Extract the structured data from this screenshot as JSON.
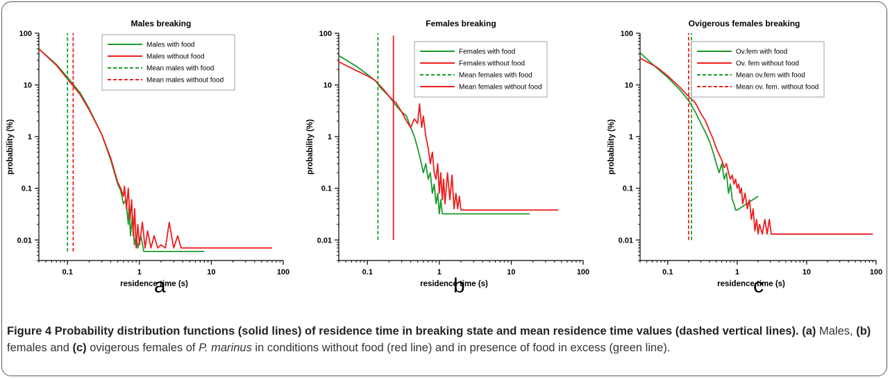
{
  "figure": {
    "letters": [
      "a",
      "b",
      "c"
    ],
    "caption": {
      "label": "Figure 4",
      "bold_text": "Probability distribution functions (solid lines) of residence time in breaking state and mean residence time values (dashed vertical lines).",
      "a_tag": "(a)",
      "a_text": "Males,",
      "b_tag": "(b)",
      "b_text": "females and",
      "c_tag": "(c)",
      "c_text": "ovigerous females of",
      "species": "P. marinus",
      "rest": "in conditions without food (red line) and in presence of food in excess (green line)."
    }
  },
  "colors": {
    "green": "#1a9a2a",
    "red": "#ee1c1c"
  },
  "chart_data": [
    {
      "type": "line",
      "title": "Males breaking",
      "xlabel": "residence time (s)",
      "ylabel": "probability (%)",
      "xscale": "log",
      "yscale": "log",
      "xlim": [
        0.04,
        100
      ],
      "ylim": [
        0.004,
        100
      ],
      "xticks": [
        {
          "v": 0.1,
          "label": "0.1"
        },
        {
          "v": 1,
          "label": "1"
        },
        {
          "v": 10,
          "label": "10"
        },
        {
          "v": 100,
          "label": "100"
        }
      ],
      "yticks": [
        {
          "v": 100,
          "label": "100"
        },
        {
          "v": 10,
          "label": "10"
        },
        {
          "v": 1,
          "label": "1"
        },
        {
          "v": 0.1,
          "label": "0.1"
        },
        {
          "v": 0.01,
          "label": "0.01"
        }
      ],
      "legend_position": "top-right",
      "series": [
        {
          "name": "Males with food",
          "color": "green",
          "dash": false,
          "points": [
            [
              0.04,
              50
            ],
            [
              0.07,
              25
            ],
            [
              0.1,
              14
            ],
            [
              0.15,
              7
            ],
            [
              0.2,
              3.5
            ],
            [
              0.3,
              1.1
            ],
            [
              0.4,
              0.35
            ],
            [
              0.5,
              0.12
            ],
            [
              0.55,
              0.09
            ],
            [
              0.6,
              0.05
            ],
            [
              0.65,
              0.06
            ],
            [
              0.7,
              0.02
            ],
            [
              0.72,
              0.05
            ],
            [
              0.75,
              0.012
            ],
            [
              0.8,
              0.03
            ],
            [
              0.85,
              0.008
            ],
            [
              0.9,
              0.012
            ],
            [
              0.95,
              0.007
            ],
            [
              1.05,
              0.012
            ],
            [
              1.15,
              0.006
            ],
            [
              1.3,
              0.006
            ],
            [
              8,
              0.006
            ]
          ]
        },
        {
          "name": "Males without food",
          "color": "red",
          "dash": false,
          "points": [
            [
              0.04,
              50
            ],
            [
              0.07,
              24
            ],
            [
              0.1,
              13
            ],
            [
              0.15,
              6.5
            ],
            [
              0.2,
              3.3
            ],
            [
              0.3,
              1.1
            ],
            [
              0.4,
              0.38
            ],
            [
              0.5,
              0.13
            ],
            [
              0.55,
              0.1
            ],
            [
              0.6,
              0.07
            ],
            [
              0.62,
              0.11
            ],
            [
              0.66,
              0.04
            ],
            [
              0.7,
              0.1
            ],
            [
              0.74,
              0.025
            ],
            [
              0.78,
              0.06
            ],
            [
              0.82,
              0.012
            ],
            [
              0.86,
              0.04
            ],
            [
              0.9,
              0.007
            ],
            [
              0.95,
              0.02
            ],
            [
              1.0,
              0.008
            ],
            [
              1.1,
              0.022
            ],
            [
              1.2,
              0.007
            ],
            [
              1.3,
              0.015
            ],
            [
              1.45,
              0.007
            ],
            [
              1.6,
              0.012
            ],
            [
              1.8,
              0.007
            ],
            [
              2.0,
              0.008
            ],
            [
              2.3,
              0.007
            ],
            [
              2.6,
              0.022
            ],
            [
              2.8,
              0.012
            ],
            [
              3.0,
              0.007
            ],
            [
              3.4,
              0.012
            ],
            [
              3.8,
              0.007
            ],
            [
              70,
              0.007
            ]
          ]
        },
        {
          "name": "Mean males with food",
          "color": "green",
          "dash": true,
          "vline": 0.1,
          "yrange": [
            0.006,
            100
          ]
        },
        {
          "name": "Mean males without food",
          "color": "red",
          "dash": true,
          "vline": 0.12,
          "yrange": [
            0.006,
            100
          ]
        }
      ]
    },
    {
      "type": "line",
      "title": "Females breaking",
      "xlabel": "residence time (s)",
      "ylabel": "probability (%)",
      "xscale": "log",
      "yscale": "log",
      "xlim": [
        0.04,
        100
      ],
      "ylim": [
        0.004,
        100
      ],
      "xticks": [
        {
          "v": 0.1,
          "label": "0.1"
        },
        {
          "v": 1,
          "label": "1"
        },
        {
          "v": 10,
          "label": "10"
        },
        {
          "v": 100,
          "label": "100"
        }
      ],
      "yticks": [
        {
          "v": 100,
          "label": "100"
        },
        {
          "v": 10,
          "label": "10"
        },
        {
          "v": 1,
          "label": "1"
        },
        {
          "v": 0.1,
          "label": "0.1"
        },
        {
          "v": 0.01,
          "label": "0.01"
        }
      ],
      "legend_position": "top-right",
      "series": [
        {
          "name": "Females with food",
          "color": "green",
          "dash": false,
          "points": [
            [
              0.04,
              37
            ],
            [
              0.07,
              23
            ],
            [
              0.1,
              16
            ],
            [
              0.13,
              12
            ],
            [
              0.15,
              9
            ],
            [
              0.2,
              6
            ],
            [
              0.25,
              4
            ],
            [
              0.3,
              3
            ],
            [
              0.35,
              2.5
            ],
            [
              0.4,
              1.5
            ],
            [
              0.45,
              1.0
            ],
            [
              0.5,
              0.6
            ],
            [
              0.55,
              0.35
            ],
            [
              0.6,
              0.2
            ],
            [
              0.65,
              0.3
            ],
            [
              0.7,
              0.15
            ],
            [
              0.75,
              0.2
            ],
            [
              0.8,
              0.08
            ],
            [
              0.85,
              0.12
            ],
            [
              0.9,
              0.05
            ],
            [
              0.95,
              0.08
            ],
            [
              1.0,
              0.032
            ],
            [
              1.05,
              0.06
            ],
            [
              1.1,
              0.032
            ],
            [
              18,
              0.032
            ]
          ]
        },
        {
          "name": "Females without food",
          "color": "red",
          "dash": false,
          "points": [
            [
              0.04,
              28
            ],
            [
              0.07,
              19
            ],
            [
              0.1,
              15
            ],
            [
              0.13,
              12
            ],
            [
              0.17,
              8
            ],
            [
              0.2,
              6
            ],
            [
              0.25,
              4.5
            ],
            [
              0.3,
              3
            ],
            [
              0.35,
              2
            ],
            [
              0.4,
              1.5
            ],
            [
              0.45,
              2.2
            ],
            [
              0.5,
              1.8
            ],
            [
              0.53,
              4.3
            ],
            [
              0.57,
              1.5
            ],
            [
              0.6,
              2.5
            ],
            [
              0.65,
              1.0
            ],
            [
              0.7,
              0.6
            ],
            [
              0.75,
              0.3
            ],
            [
              0.8,
              0.5
            ],
            [
              0.85,
              0.2
            ],
            [
              0.9,
              0.15
            ],
            [
              0.95,
              0.3
            ],
            [
              1.0,
              0.08
            ],
            [
              1.05,
              0.2
            ],
            [
              1.1,
              0.06
            ],
            [
              1.15,
              0.15
            ],
            [
              1.2,
              0.05
            ],
            [
              1.3,
              0.2
            ],
            [
              1.4,
              0.06
            ],
            [
              1.5,
              0.18
            ],
            [
              1.6,
              0.04
            ],
            [
              1.7,
              0.08
            ],
            [
              1.8,
              0.04
            ],
            [
              1.9,
              0.07
            ],
            [
              2.0,
              0.038
            ],
            [
              45,
              0.038
            ]
          ]
        },
        {
          "name": "Mean females with food",
          "color": "green",
          "dash": true,
          "vline": 0.14,
          "yrange": [
            0.01,
            100
          ]
        },
        {
          "name": "Mean females without food",
          "color": "red",
          "dash": false,
          "vline": 0.23,
          "yrange": [
            0.01,
            90
          ]
        }
      ]
    },
    {
      "type": "line",
      "title": "Ovigerous females breaking",
      "xlabel": "residence time (s)",
      "ylabel": "probability (%)",
      "xscale": "log",
      "yscale": "log",
      "xlim": [
        0.04,
        100
      ],
      "ylim": [
        0.004,
        100
      ],
      "xticks": [
        {
          "v": 0.1,
          "label": "0.1"
        },
        {
          "v": 1,
          "label": "1"
        },
        {
          "v": 10,
          "label": "10"
        },
        {
          "v": 100,
          "label": "100"
        }
      ],
      "yticks": [
        {
          "v": 100,
          "label": "100"
        },
        {
          "v": 10,
          "label": "10"
        },
        {
          "v": 1,
          "label": "1"
        },
        {
          "v": 0.1,
          "label": "0.1"
        },
        {
          "v": 0.01,
          "label": "0.01"
        }
      ],
      "legend_position": "top-right",
      "series": [
        {
          "name": "Ov.fem with food",
          "color": "green",
          "dash": false,
          "points": [
            [
              0.04,
              42
            ],
            [
              0.07,
              21
            ],
            [
              0.1,
              14
            ],
            [
              0.15,
              8
            ],
            [
              0.2,
              5
            ],
            [
              0.25,
              3
            ],
            [
              0.3,
              1.8
            ],
            [
              0.35,
              1.2
            ],
            [
              0.4,
              0.8
            ],
            [
              0.45,
              0.5
            ],
            [
              0.5,
              0.3
            ],
            [
              0.55,
              0.2
            ],
            [
              0.6,
              0.3
            ],
            [
              0.65,
              0.15
            ],
            [
              0.7,
              0.2
            ],
            [
              0.75,
              0.08
            ],
            [
              0.8,
              0.12
            ],
            [
              0.85,
              0.06
            ],
            [
              0.9,
              0.05
            ],
            [
              0.95,
              0.038
            ],
            [
              1.0,
              0.038
            ],
            [
              2.0,
              0.07
            ]
          ]
        },
        {
          "name": "Ov. fem without food",
          "color": "red",
          "dash": false,
          "points": [
            [
              0.04,
              33
            ],
            [
              0.07,
              22
            ],
            [
              0.1,
              15
            ],
            [
              0.15,
              9
            ],
            [
              0.2,
              6
            ],
            [
              0.25,
              4.5
            ],
            [
              0.3,
              2.8
            ],
            [
              0.35,
              2.0
            ],
            [
              0.4,
              1.3
            ],
            [
              0.45,
              0.9
            ],
            [
              0.5,
              0.6
            ],
            [
              0.55,
              0.45
            ],
            [
              0.6,
              0.35
            ],
            [
              0.65,
              0.25
            ],
            [
              0.7,
              0.3
            ],
            [
              0.75,
              0.2
            ],
            [
              0.8,
              0.15
            ],
            [
              0.85,
              0.18
            ],
            [
              0.9,
              0.12
            ],
            [
              0.95,
              0.15
            ],
            [
              1.0,
              0.1
            ],
            [
              1.05,
              0.12
            ],
            [
              1.1,
              0.08
            ],
            [
              1.15,
              0.1
            ],
            [
              1.2,
              0.05
            ],
            [
              1.3,
              0.08
            ],
            [
              1.4,
              0.04
            ],
            [
              1.5,
              0.06
            ],
            [
              1.6,
              0.025
            ],
            [
              1.7,
              0.04
            ],
            [
              1.8,
              0.015
            ],
            [
              1.9,
              0.025
            ],
            [
              2.0,
              0.013
            ],
            [
              2.1,
              0.02
            ],
            [
              2.3,
              0.013
            ],
            [
              2.5,
              0.025
            ],
            [
              2.7,
              0.013
            ],
            [
              2.9,
              0.025
            ],
            [
              3.1,
              0.013
            ],
            [
              90,
              0.013
            ]
          ]
        },
        {
          "name": "Mean ov.fem with food",
          "color": "green",
          "dash": true,
          "vline": 0.22,
          "yrange": [
            0.01,
            100
          ]
        },
        {
          "name": "Mean ov. fem. without food",
          "color": "red",
          "dash": true,
          "vline": 0.2,
          "yrange": [
            0.01,
            100
          ]
        }
      ]
    }
  ]
}
